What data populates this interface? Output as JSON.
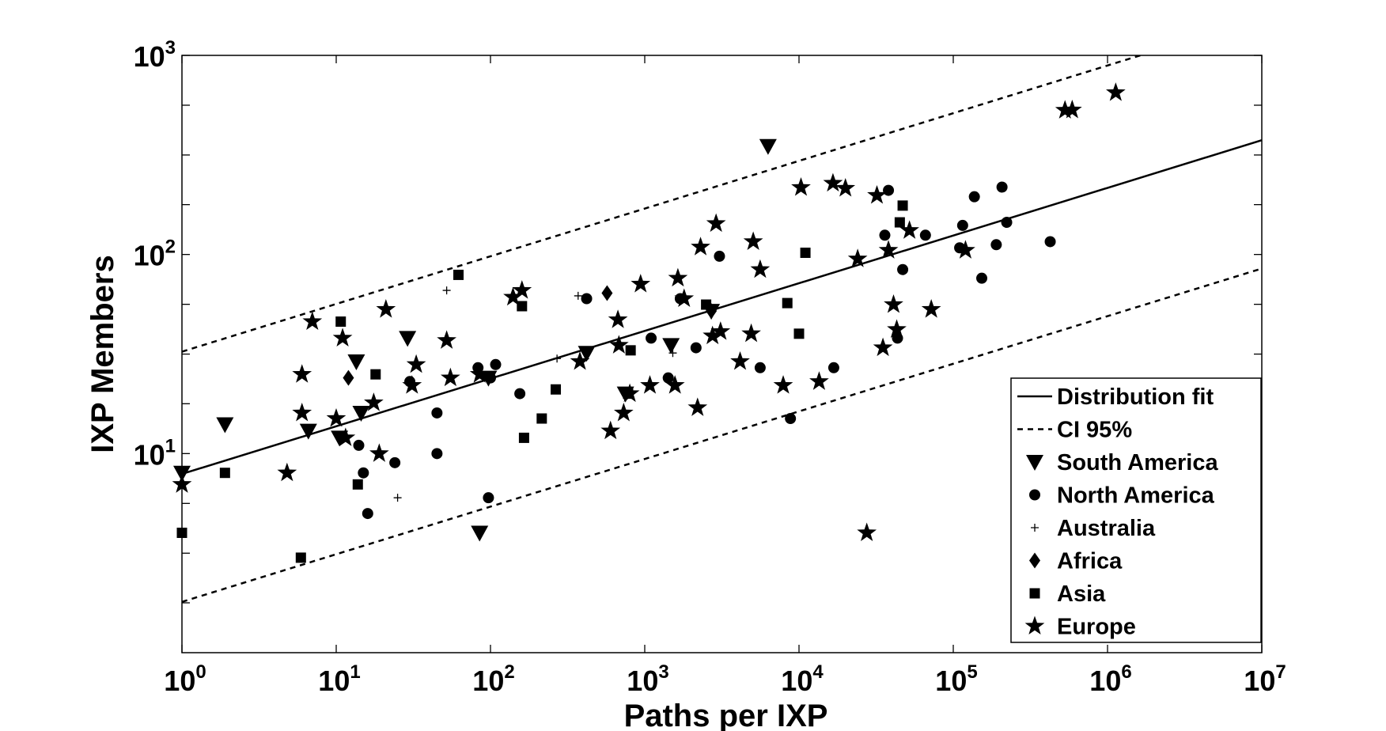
{
  "chart_data": {
    "type": "scatter",
    "xlabel": "Paths per IXP",
    "ylabel": "IXP Members",
    "xscale": "log",
    "yscale": "log",
    "xlim": [
      1,
      10000000
    ],
    "ylim": [
      1,
      1000
    ],
    "x_ticks": [
      {
        "base": "10",
        "exp": "0",
        "value": 1
      },
      {
        "base": "10",
        "exp": "1",
        "value": 10
      },
      {
        "base": "10",
        "exp": "2",
        "value": 100
      },
      {
        "base": "10",
        "exp": "3",
        "value": 1000
      },
      {
        "base": "10",
        "exp": "4",
        "value": 10000
      },
      {
        "base": "10",
        "exp": "5",
        "value": 100000
      },
      {
        "base": "10",
        "exp": "6",
        "value": 1000000
      },
      {
        "base": "10",
        "exp": "7",
        "value": 10000000
      }
    ],
    "y_ticks": [
      {
        "base": "10",
        "exp": "1",
        "value": 10
      },
      {
        "base": "10",
        "exp": "2",
        "value": 100
      },
      {
        "base": "10",
        "exp": "3",
        "value": 1000
      }
    ],
    "y_minor_ticks": [
      1.78,
      3.16,
      5.62,
      17.8,
      31.6,
      56.2,
      178,
      316,
      562
    ],
    "grid": false,
    "legend_position": "bottom-right",
    "fit_lines": [
      {
        "name": "Distribution fit",
        "style": "solid",
        "points": [
          [
            1,
            7.9
          ],
          [
            10000000,
            375
          ]
        ]
      },
      {
        "name": "CI 95%",
        "style": "dashed",
        "points": [
          [
            1,
            32.5
          ],
          [
            1630000,
            1000
          ]
        ]
      },
      {
        "name": "CI 95%",
        "style": "dashed",
        "points": [
          [
            1,
            1.8
          ],
          [
            10000000,
            85
          ]
        ]
      }
    ],
    "legend": [
      {
        "label": "Distribution fit",
        "marker": "line-solid"
      },
      {
        "label": "CI 95%",
        "marker": "line-dashed"
      },
      {
        "label": "South America",
        "marker": "triangle-down"
      },
      {
        "label": "North America",
        "marker": "circle"
      },
      {
        "label": "Australia",
        "marker": "plus"
      },
      {
        "label": "Africa",
        "marker": "diamond"
      },
      {
        "label": "Asia",
        "marker": "square"
      },
      {
        "label": "Europe",
        "marker": "star"
      }
    ],
    "series": [
      {
        "name": "South America",
        "marker": "triangle-down",
        "points": [
          [
            1,
            8
          ],
          [
            1.9,
            14
          ],
          [
            6.6,
            13
          ],
          [
            10.5,
            12
          ],
          [
            13.5,
            29
          ],
          [
            14.5,
            16
          ],
          [
            29,
            38
          ],
          [
            85,
            4
          ],
          [
            97,
            24
          ],
          [
            420,
            32
          ],
          [
            750,
            20
          ],
          [
            1480,
            35
          ],
          [
            2700,
            52
          ],
          [
            6300,
            350
          ]
        ]
      },
      {
        "name": "North America",
        "marker": "circle",
        "points": [
          [
            14,
            11
          ],
          [
            15,
            8
          ],
          [
            16,
            5
          ],
          [
            24,
            9
          ],
          [
            30,
            23
          ],
          [
            45,
            16
          ],
          [
            45,
            10
          ],
          [
            83,
            27
          ],
          [
            97,
            6
          ],
          [
            100,
            24
          ],
          [
            108,
            28
          ],
          [
            155,
            20
          ],
          [
            420,
            60
          ],
          [
            1100,
            38
          ],
          [
            1420,
            24
          ],
          [
            1700,
            60
          ],
          [
            2150,
            34
          ],
          [
            3050,
            98
          ],
          [
            5600,
            27
          ],
          [
            8800,
            15
          ],
          [
            16800,
            27
          ],
          [
            36000,
            125
          ],
          [
            38000,
            210
          ],
          [
            43500,
            38
          ],
          [
            47000,
            84
          ],
          [
            66000,
            125
          ],
          [
            110000,
            108
          ],
          [
            115000,
            140
          ],
          [
            137000,
            195
          ],
          [
            153000,
            76
          ],
          [
            190000,
            112
          ],
          [
            207000,
            218
          ],
          [
            222000,
            145
          ],
          [
            425000,
            116
          ]
        ]
      },
      {
        "name": "Australia",
        "marker": "plus",
        "points": [
          [
            25,
            6
          ],
          [
            52,
            66
          ],
          [
            270,
            30
          ],
          [
            370,
            62
          ],
          [
            1520,
            32
          ]
        ]
      },
      {
        "name": "Africa",
        "marker": "diamond",
        "points": [
          [
            12,
            24
          ],
          [
            570,
            64
          ],
          [
            2700,
            52
          ]
        ]
      },
      {
        "name": "Asia",
        "marker": "square",
        "points": [
          [
            1,
            4
          ],
          [
            1.9,
            8
          ],
          [
            5.9,
            3
          ],
          [
            10.7,
            46
          ],
          [
            13.8,
            7
          ],
          [
            18,
            25
          ],
          [
            62,
            79
          ],
          [
            160,
            55
          ],
          [
            165,
            12
          ],
          [
            215,
            15
          ],
          [
            265,
            21
          ],
          [
            780,
            20
          ],
          [
            810,
            33
          ],
          [
            2500,
            56
          ],
          [
            8400,
            57
          ],
          [
            10000,
            40
          ],
          [
            11000,
            102
          ],
          [
            45000,
            145
          ],
          [
            47000,
            176
          ]
        ]
      },
      {
        "name": "Europe",
        "marker": "star",
        "points": [
          [
            1,
            7
          ],
          [
            4.8,
            8
          ],
          [
            6,
            16
          ],
          [
            6,
            25
          ],
          [
            7,
            46
          ],
          [
            10,
            15
          ],
          [
            11,
            38
          ],
          [
            11.5,
            12
          ],
          [
            17.5,
            18
          ],
          [
            19,
            10
          ],
          [
            21,
            53
          ],
          [
            31,
            22
          ],
          [
            33,
            28
          ],
          [
            52,
            37
          ],
          [
            55,
            24
          ],
          [
            85,
            25
          ],
          [
            140,
            61
          ],
          [
            160,
            66
          ],
          [
            380,
            29
          ],
          [
            600,
            13
          ],
          [
            670,
            47
          ],
          [
            680,
            35
          ],
          [
            730,
            16
          ],
          [
            800,
            20
          ],
          [
            940,
            71
          ],
          [
            1080,
            22
          ],
          [
            1570,
            22
          ],
          [
            1640,
            76
          ],
          [
            1800,
            60
          ],
          [
            2200,
            17
          ],
          [
            2300,
            109
          ],
          [
            2750,
            39
          ],
          [
            2900,
            143
          ],
          [
            3100,
            41
          ],
          [
            4150,
            29
          ],
          [
            4900,
            40
          ],
          [
            5050,
            116
          ],
          [
            5600,
            84
          ],
          [
            7900,
            22
          ],
          [
            10300,
            217
          ],
          [
            13500,
            23
          ],
          [
            16600,
            228
          ],
          [
            20000,
            215
          ],
          [
            24000,
            95
          ],
          [
            27500,
            4
          ],
          [
            32000,
            198
          ],
          [
            35000,
            34
          ],
          [
            38000,
            105
          ],
          [
            41000,
            56
          ],
          [
            43000,
            42
          ],
          [
            52000,
            132
          ],
          [
            72000,
            53
          ],
          [
            120000,
            105
          ],
          [
            530000,
            530
          ],
          [
            590000,
            532
          ],
          [
            1130000,
            650
          ]
        ]
      }
    ]
  }
}
